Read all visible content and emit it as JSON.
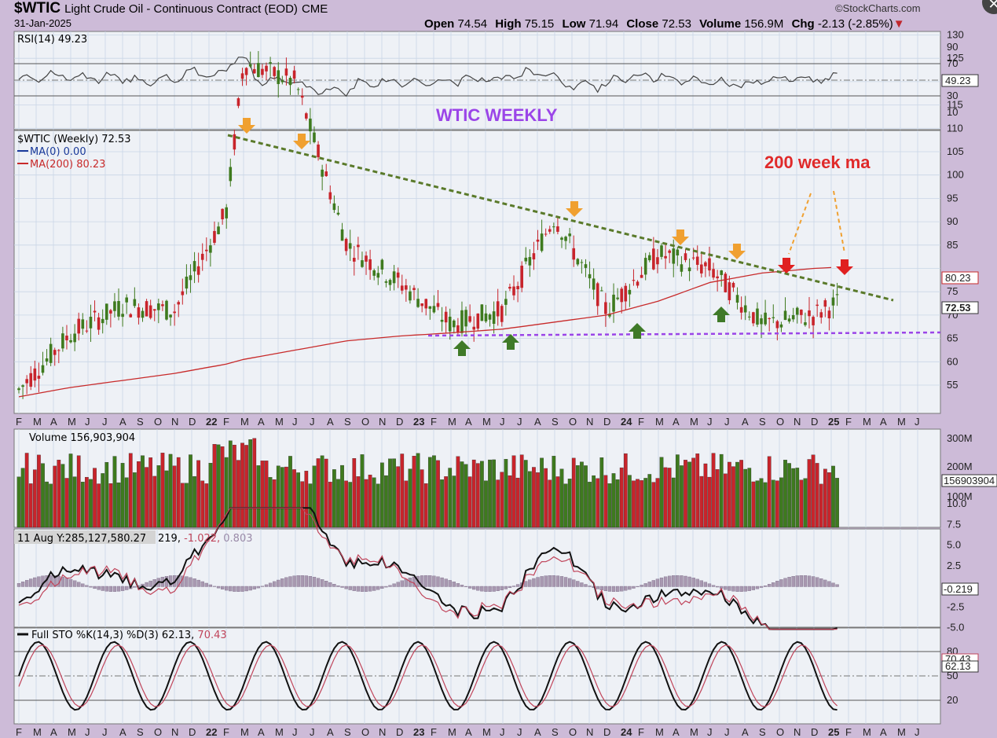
{
  "header": {
    "symbol": "$WTIC",
    "name": "Light Crude Oil - Continuous Contract (EOD)",
    "exchange": "CME",
    "date": "31-Jan-2025",
    "brand": "©StockCharts.com",
    "open_label": "Open",
    "open": "74.54",
    "high_label": "High",
    "high": "75.15",
    "low_label": "Low",
    "low": "71.94",
    "close_label": "Close",
    "close": "72.53",
    "volume_label": "Volume",
    "volume": "156.9M",
    "chg_label": "Chg",
    "chg": "-2.13 (-2.85%)",
    "chg_arrow": "▼",
    "close_icon": "close-icon"
  },
  "rsi_panel": {
    "legend": "RSI(14) 49.23",
    "current_box": "49.23",
    "ticks": [
      "90",
      "70",
      "50",
      "30",
      "10"
    ],
    "annotation": "WTIC WEEKLY"
  },
  "price_panel": {
    "legend": "$WTIC (Weekly) 72.53",
    "ma0_legend": "MA(0) 0.00",
    "ma200_legend": "MA(200) 80.23",
    "annotation": "200 week ma",
    "ma200_box": "80.23",
    "close_box": "72.53",
    "ticks": [
      "130",
      "125",
      "120",
      "115",
      "110",
      "105",
      "100",
      "95",
      "90",
      "85",
      "80",
      "75",
      "70",
      "65",
      "60",
      "55"
    ]
  },
  "volume_panel": {
    "legend": "Volume 156,903,904",
    "current_box": "156903904",
    "ticks": [
      "300M",
      "200M",
      "100M"
    ]
  },
  "macd_panel": {
    "hover_label": "11 Aug Y:285,127,580.27",
    "legend_tail": "219,",
    "legend_signal": "-1.022,",
    "legend_hist": "0.803",
    "current_box": "-0.219",
    "ticks": [
      "10.0",
      "7.5",
      "5.0",
      "2.5",
      "0.0",
      "-2.5",
      "-5.0"
    ]
  },
  "sto_panel": {
    "legend": "Full STO %K(14,3) %D(3) 62.13,",
    "legend_d": "70.43",
    "k_box": "62.13",
    "d_box": "70.43",
    "ticks": [
      "80",
      "50",
      "20"
    ]
  },
  "time_axis": [
    "F",
    "M",
    "A",
    "M",
    "J",
    "J",
    "A",
    "S",
    "O",
    "N",
    "D",
    "22",
    "F",
    "M",
    "A",
    "M",
    "J",
    "J",
    "A",
    "S",
    "O",
    "N",
    "D",
    "23",
    "F",
    "M",
    "A",
    "M",
    "J",
    "J",
    "A",
    "S",
    "O",
    "N",
    "D",
    "24",
    "F",
    "M",
    "A",
    "M",
    "J",
    "J",
    "A",
    "S",
    "O",
    "N",
    "D",
    "25",
    "F",
    "M",
    "A",
    "M",
    "J"
  ],
  "colors": {
    "up": "#3e7a1e",
    "down": "#c8242b",
    "ma200": "#c82a2a",
    "trend": "#5a7a2a",
    "support": "#9b45e8",
    "orange_arrow": "#f0a030",
    "green_arrow": "#3f7a28",
    "red_arrow": "#e02020",
    "annot_purple": "#9b45e8",
    "annot_red": "#e02a2a"
  },
  "chart_data": {
    "type": "line",
    "title": "$WTIC Light Crude Oil - Continuous Contract (EOD) CME",
    "x": [
      "2021-02",
      "2021-05",
      "2021-08",
      "2021-11",
      "2022-02",
      "2022-03",
      "2022-06",
      "2022-09",
      "2022-12",
      "2023-03",
      "2023-06",
      "2023-09",
      "2023-12",
      "2024-03",
      "2024-06",
      "2024-09",
      "2024-12",
      "2025-01"
    ],
    "series": [
      {
        "name": "$WTIC (Weekly)",
        "values": [
          54,
          66,
          72,
          71,
          92,
          124,
          120,
          85,
          77,
          68,
          71,
          91,
          71,
          83,
          80,
          68,
          70,
          72.53
        ]
      },
      {
        "name": "MA(200)",
        "values": [
          52.5,
          54.5,
          56,
          57.5,
          59.5,
          60.5,
          62.5,
          64.5,
          65.5,
          66.2,
          67,
          68.5,
          70,
          73,
          77,
          79,
          80,
          80.23
        ]
      }
    ],
    "ylim": [
      50,
      132
    ],
    "annotations": [
      "WTIC WEEKLY",
      "200 week ma"
    ]
  }
}
